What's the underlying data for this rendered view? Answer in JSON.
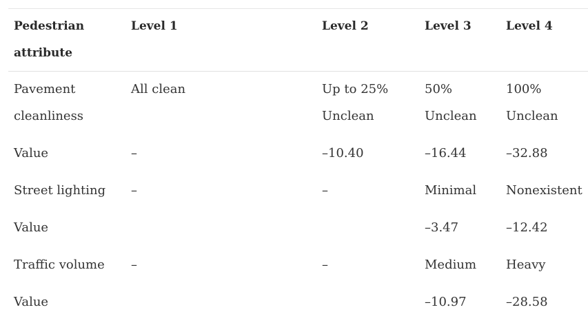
{
  "table": {
    "headers": [
      "Pedestrian attribute",
      "Level 1",
      "Level 2",
      "Level 3",
      "Level 4"
    ],
    "rows": [
      [
        "Pavement cleanliness",
        "All clean",
        "Up to 25% Unclean",
        "50% Unclean",
        "100% Unclean"
      ],
      [
        "Value",
        "–",
        "–10.40",
        "–16.44",
        "–32.88"
      ],
      [
        "Street lighting",
        "–",
        "–",
        "Minimal",
        "Nonexistent"
      ],
      [
        "Value",
        "",
        "",
        "–3.47",
        "–12.42"
      ],
      [
        "Traffic volume",
        "–",
        "–",
        "Medium",
        "Heavy"
      ],
      [
        "Value",
        "",
        "",
        "–10.97",
        "–28.58"
      ]
    ]
  }
}
